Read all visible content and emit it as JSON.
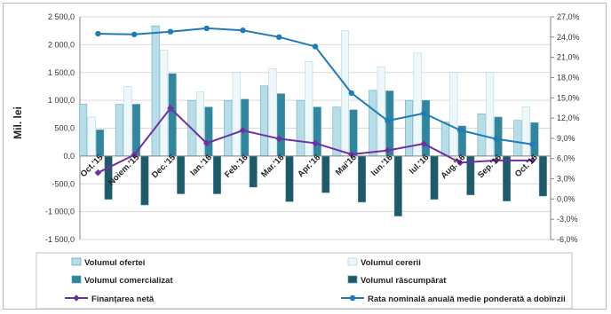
{
  "chart_data": {
    "type": "bar",
    "ylabel": "Mil. lei",
    "ylim": [
      -1500,
      2500
    ],
    "y_ticks": [
      "2 500,0",
      "2 000,0",
      "1 500,0",
      "1 000,0",
      "500,0",
      "0,0",
      "-500,0",
      "-1 000,0",
      "-1 500,0"
    ],
    "y2lim": [
      -6,
      27
    ],
    "y2_ticks": [
      "27,0%",
      "24,0%",
      "21,0%",
      "18,0%",
      "15,0%",
      "12,0%",
      "9,0%",
      "6,0%",
      "3,0%",
      "0,0%",
      "-3,0%",
      "-6,0%"
    ],
    "grid": true,
    "legend_position": "bottom",
    "categories": [
      "Oct.'15",
      "Noiem.'15",
      "Dec.'15",
      "Ian.'16",
      "Feb.'16",
      "Mar.'16",
      "Apr.'16",
      "Mai'16",
      "Iun.'16",
      "Iul.'16",
      "Aug.'16",
      "Sep.'16",
      "Oct.'16"
    ],
    "series": [
      {
        "name": "Volumul ofertei",
        "kind": "bar",
        "axis": "left",
        "color": "#b6dde8",
        "values": [
          930,
          930,
          2340,
          1000,
          1000,
          1260,
          1000,
          880,
          1180,
          1000,
          610,
          760,
          640
        ]
      },
      {
        "name": "Volumul cererii",
        "kind": "bar",
        "axis": "left",
        "color": "#eef7fa",
        "values": [
          700,
          1250,
          1900,
          1150,
          1500,
          1570,
          1700,
          2250,
          1600,
          1850,
          1500,
          1500,
          880
        ]
      },
      {
        "name": "Volumul comercializat",
        "kind": "bar",
        "axis": "left",
        "color": "#31859c",
        "values": [
          470,
          930,
          1480,
          880,
          1020,
          1120,
          880,
          830,
          1170,
          1000,
          540,
          700,
          600
        ]
      },
      {
        "name": "Volumul răscumpărat",
        "kind": "bar",
        "axis": "left",
        "color": "#215968",
        "values": [
          -780,
          -880,
          -680,
          -680,
          -560,
          -820,
          -660,
          -830,
          -1080,
          -780,
          -700,
          -810,
          -720
        ]
      },
      {
        "name": "Finanțarea netă",
        "kind": "line",
        "axis": "left",
        "color": "#7030a0",
        "values": [
          -300,
          20,
          860,
          230,
          460,
          310,
          230,
          30,
          100,
          220,
          -120,
          -80,
          -80
        ]
      },
      {
        "name": "Rata nominală anuală medie ponderată a dobînzii",
        "kind": "line",
        "axis": "right",
        "color": "#1f7cb5",
        "values": [
          24.5,
          24.4,
          24.8,
          25.3,
          25.0,
          24.0,
          22.6,
          15.7,
          11.6,
          12.7,
          10.2,
          8.9,
          8.1
        ]
      }
    ]
  }
}
